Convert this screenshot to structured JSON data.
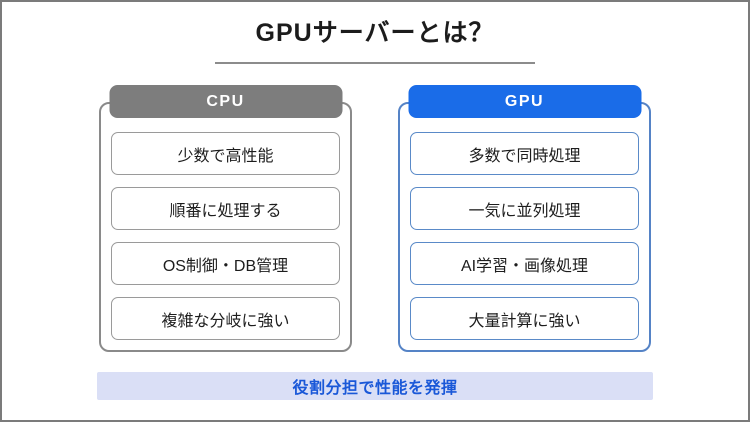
{
  "title": "GPUサーバーとは？",
  "comparison": {
    "columns": [
      {
        "label": "CPU",
        "accent_color": "#7d7d7d",
        "border_color": "#8a8a8a",
        "items": [
          "少数で高性能",
          "順番に処理する",
          "OS制御・DB管理",
          "複雑な分岐に強い"
        ]
      },
      {
        "label": "GPU",
        "accent_color": "#1a6ce8",
        "border_color": "#5583c6",
        "items": [
          "多数で同時処理",
          "一気に並列処理",
          "AI学習・画像処理",
          "大量計算に強い"
        ]
      }
    ]
  },
  "banner": {
    "label": "役割分担で性能を発揮",
    "background_color": "#dadff6",
    "text_color": "#1a58d8"
  }
}
